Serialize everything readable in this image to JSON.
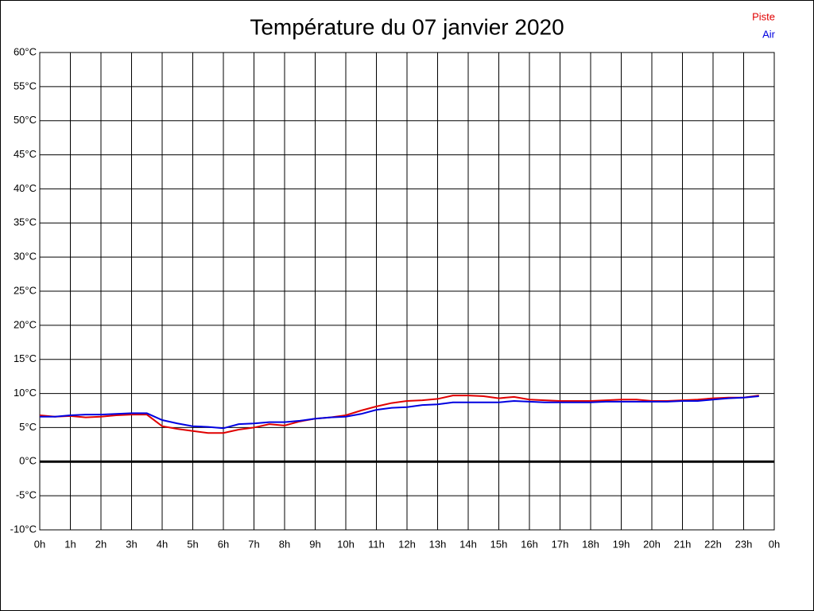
{
  "chart_data": {
    "type": "line",
    "title": "Température du 07 janvier 2020",
    "x": [
      0,
      0.5,
      1,
      1.5,
      2,
      2.5,
      3,
      3.5,
      4,
      4.5,
      5,
      5.5,
      6,
      6.5,
      7,
      7.5,
      8,
      8.5,
      9,
      9.5,
      10,
      10.5,
      11,
      11.5,
      12,
      12.5,
      13,
      13.5,
      14,
      14.5,
      15,
      15.5,
      16,
      16.5,
      17,
      17.5,
      18,
      18.5,
      19,
      19.5,
      20,
      20.5,
      21,
      21.5,
      22,
      22.5,
      23,
      23.5
    ],
    "series": [
      {
        "name": "Piste",
        "color": "#e00000",
        "values": [
          6.8,
          6.6,
          6.7,
          6.5,
          6.6,
          6.8,
          6.9,
          6.9,
          5.2,
          4.8,
          4.5,
          4.2,
          4.2,
          4.7,
          5.0,
          5.5,
          5.3,
          5.9,
          6.3,
          6.5,
          6.8,
          7.5,
          8.1,
          8.6,
          8.9,
          9.0,
          9.2,
          9.7,
          9.7,
          9.6,
          9.3,
          9.5,
          9.1,
          9.0,
          8.9,
          8.9,
          8.9,
          9.0,
          9.1,
          9.1,
          8.9,
          8.9,
          9.0,
          9.1,
          9.3,
          9.4,
          9.4,
          9.7
        ]
      },
      {
        "name": "Air",
        "color": "#0000e0",
        "values": [
          6.6,
          6.6,
          6.8,
          6.9,
          6.9,
          7.0,
          7.1,
          7.1,
          6.1,
          5.6,
          5.2,
          5.1,
          4.9,
          5.5,
          5.6,
          5.8,
          5.8,
          6.0,
          6.3,
          6.5,
          6.6,
          7.0,
          7.6,
          7.9,
          8.0,
          8.3,
          8.4,
          8.7,
          8.7,
          8.7,
          8.7,
          8.9,
          8.8,
          8.7,
          8.7,
          8.7,
          8.7,
          8.8,
          8.8,
          8.8,
          8.8,
          8.8,
          8.9,
          8.9,
          9.1,
          9.3,
          9.4,
          9.6
        ]
      }
    ],
    "xlim": [
      0,
      24
    ],
    "xticks": [
      {
        "value": 0,
        "label": "0h"
      },
      {
        "value": 1,
        "label": "1h"
      },
      {
        "value": 2,
        "label": "2h"
      },
      {
        "value": 3,
        "label": "3h"
      },
      {
        "value": 4,
        "label": "4h"
      },
      {
        "value": 5,
        "label": "5h"
      },
      {
        "value": 6,
        "label": "6h"
      },
      {
        "value": 7,
        "label": "7h"
      },
      {
        "value": 8,
        "label": "8h"
      },
      {
        "value": 9,
        "label": "9h"
      },
      {
        "value": 10,
        "label": "10h"
      },
      {
        "value": 11,
        "label": "11h"
      },
      {
        "value": 12,
        "label": "12h"
      },
      {
        "value": 13,
        "label": "13h"
      },
      {
        "value": 14,
        "label": "14h"
      },
      {
        "value": 15,
        "label": "15h"
      },
      {
        "value": 16,
        "label": "16h"
      },
      {
        "value": 17,
        "label": "17h"
      },
      {
        "value": 18,
        "label": "18h"
      },
      {
        "value": 19,
        "label": "19h"
      },
      {
        "value": 20,
        "label": "20h"
      },
      {
        "value": 21,
        "label": "21h"
      },
      {
        "value": 22,
        "label": "22h"
      },
      {
        "value": 23,
        "label": "23h"
      },
      {
        "value": 24,
        "label": "0h"
      }
    ],
    "ylim": [
      -10,
      60
    ],
    "yticks": [
      {
        "value": -10,
        "label": "-10°C"
      },
      {
        "value": -5,
        "label": "-5°C"
      },
      {
        "value": 0,
        "label": "0°C"
      },
      {
        "value": 5,
        "label": "5°C"
      },
      {
        "value": 10,
        "label": "10°C"
      },
      {
        "value": 15,
        "label": "15°C"
      },
      {
        "value": 20,
        "label": "20°C"
      },
      {
        "value": 25,
        "label": "25°C"
      },
      {
        "value": 30,
        "label": "30°C"
      },
      {
        "value": 35,
        "label": "35°C"
      },
      {
        "value": 40,
        "label": "40°C"
      },
      {
        "value": 45,
        "label": "45°C"
      },
      {
        "value": 50,
        "label": "50°C"
      },
      {
        "value": 55,
        "label": "55°C"
      },
      {
        "value": 60,
        "label": "60°C"
      }
    ],
    "grid": true,
    "zero_line": true,
    "legend": "top-right"
  }
}
